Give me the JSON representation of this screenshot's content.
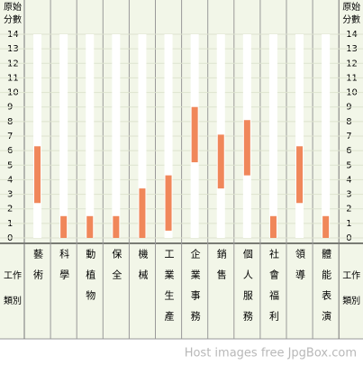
{
  "chart_data": {
    "type": "range-bar",
    "axis_title_lines": [
      "原始",
      "分數"
    ],
    "x_label_lines": [
      "工作",
      "類別"
    ],
    "categories": [
      "藝術",
      "科學",
      "動植物",
      "保全",
      "機械",
      "工業生產",
      "企業事務",
      "銷售",
      "個人服務",
      "社會福利",
      "領導",
      "體能表演"
    ],
    "low": [
      2.4,
      0,
      0,
      0,
      0,
      0.5,
      5.2,
      3.4,
      4.3,
      0,
      2.4,
      0
    ],
    "high": [
      6.3,
      1.5,
      1.5,
      1.5,
      3.4,
      4.3,
      9,
      7.1,
      8.1,
      1.5,
      6.3,
      1.5
    ],
    "color": "#f0875a",
    "ylim": [
      0,
      14
    ],
    "yticks": [
      0,
      1,
      2,
      3,
      4,
      5,
      6,
      7,
      8,
      9,
      10,
      11,
      12,
      13,
      14
    ],
    "grid": true,
    "footer": "Host images free JpgBox.com"
  }
}
